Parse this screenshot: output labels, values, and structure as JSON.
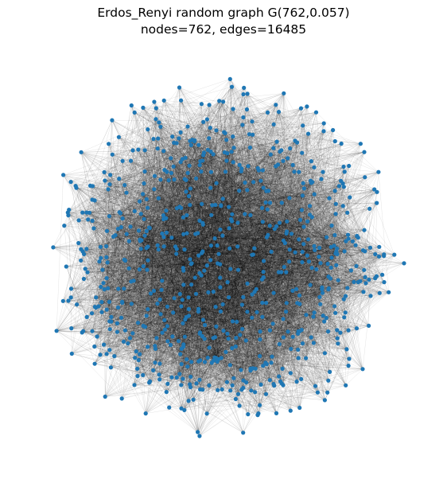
{
  "title": {
    "line1": "Erdos_Renyi random graph G(762,0.057)",
    "line2": "nodes=762, edges=16485"
  },
  "graph": {
    "model": "Erdos_Renyi",
    "nodes": 762,
    "edges": 16485,
    "edge_probability": 0.057,
    "node_color": "#1f77b4",
    "edge_color": "#000000"
  }
}
